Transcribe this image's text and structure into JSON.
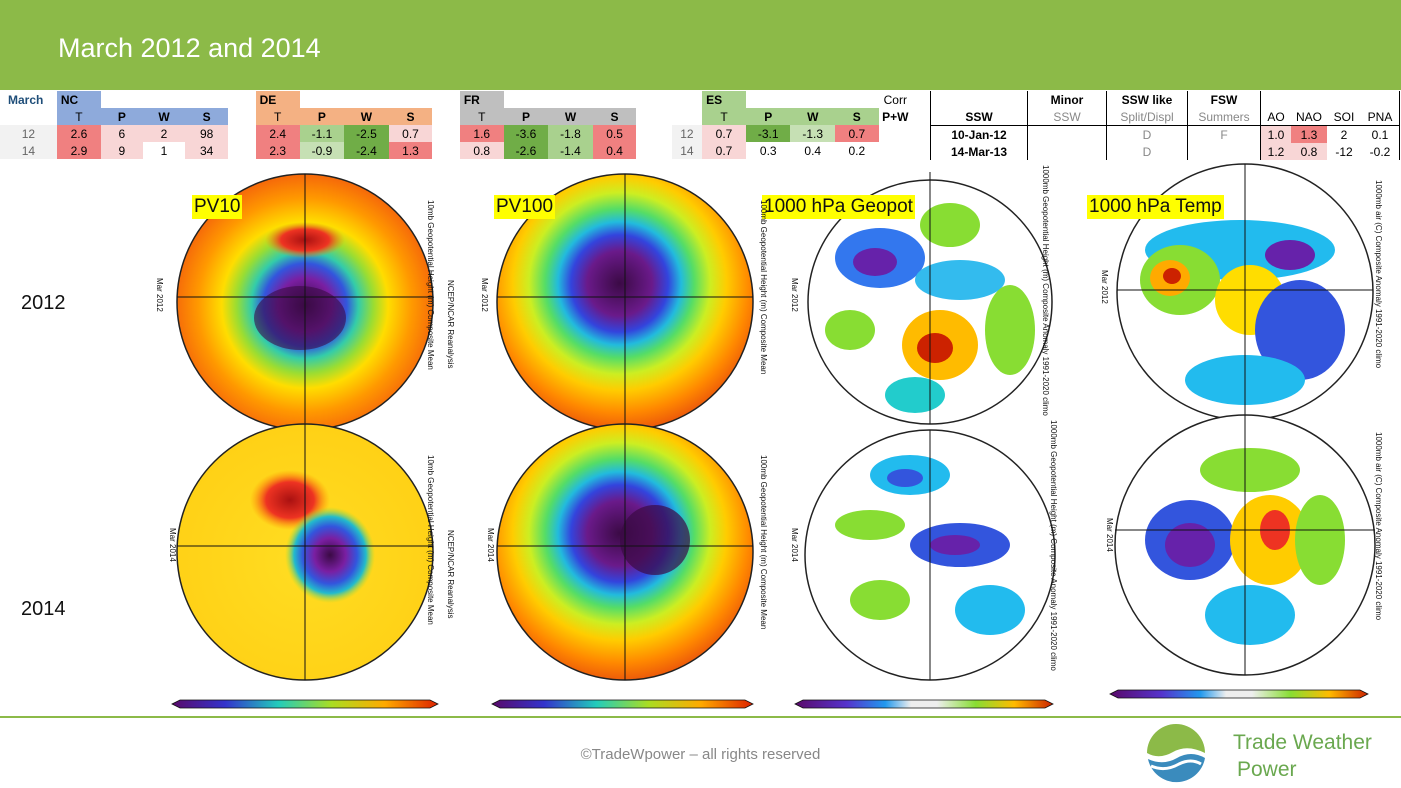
{
  "header": {
    "title": "March 2012 and 2014"
  },
  "table_left": {
    "corner": "March",
    "groups": [
      {
        "name": "NC",
        "color": "#8eaadb",
        "cols": [
          "T",
          "P",
          "W",
          "S"
        ],
        "rows": [
          [
            "2.6",
            "6",
            "2",
            "98"
          ],
          [
            "2.9",
            "9",
            "1",
            "34"
          ]
        ]
      },
      {
        "name": "DE",
        "color": "#f4b183",
        "cols": [
          "T",
          "P",
          "W",
          "S"
        ],
        "rows": [
          [
            "2.4",
            "-1.1",
            "-2.5",
            "0.7"
          ],
          [
            "2.3",
            "-0.9",
            "-2.4",
            "1.3"
          ]
        ]
      },
      {
        "name": "FR",
        "color": "#bfbfbf",
        "cols": [
          "T",
          "P",
          "W",
          "S"
        ],
        "rows": [
          [
            "1.6",
            "-3.6",
            "-1.8",
            "0.5"
          ],
          [
            "0.8",
            "-2.6",
            "-1.4",
            "0.4"
          ]
        ]
      },
      {
        "name": "ES",
        "color": "#a9d18e",
        "cols": [
          "T",
          "P",
          "W",
          "S"
        ],
        "rows": [
          [
            "0.7",
            "-3.1",
            "-1.3",
            "0.7"
          ],
          [
            "0.7",
            "0.3",
            "0.4",
            "0.2"
          ]
        ]
      }
    ],
    "row_labels": [
      "12",
      "14"
    ],
    "corr_label": "Corr",
    "pw_label": "P+W"
  },
  "table_right": {
    "headers": [
      "SSW",
      "Minor",
      "SSW like",
      "FSW"
    ],
    "subheaders": [
      "",
      "SSW",
      "Split/Displ",
      "Summers"
    ],
    "rows": [
      [
        "10-Jan-12",
        "",
        "D",
        "F"
      ],
      [
        "14-Mar-13",
        "",
        "D",
        ""
      ]
    ],
    "index_headers": [
      "AO",
      "NAO",
      "SOI",
      "PNA"
    ],
    "index_rows": [
      [
        "1.0",
        "1.3",
        "2",
        "0.1"
      ],
      [
        "1.2",
        "0.8",
        "-12",
        "-0.2"
      ]
    ]
  },
  "maps": {
    "titles": [
      "PV10",
      "PV100",
      "1000 hPa Geopot",
      "1000 hPa Temp"
    ],
    "years": [
      "2012",
      "2014"
    ],
    "mar_labels": [
      "Mar 2012",
      "Mar 2014"
    ],
    "side_labels": [
      [
        "10mb Geopotential Height (m) Composite Mean",
        "NCEP/NCAR Reanalysis",
        "NOAA Physical Sciences Laboratory"
      ],
      [
        "100mb Geopotential Height (m) Composite Mean",
        "NCEP/NCAR Reanalysis",
        "NOAA Physical Sciences Laboratory"
      ],
      [
        "1000mb Geopotential Height (m) Composite Anomaly 1991-2020 climo",
        "NCEP/NCAR Reanalysis",
        "NOAA Physical Sciences Laboratory"
      ],
      [
        "1000mb air (C) Composite Anomaly 1991-2020 climo",
        "NCEP/NCAR Reanalysis",
        "NOAA Physical Sciences Laboratory"
      ]
    ]
  },
  "footer": {
    "copyright": "©TradeWpower – all rights reserved",
    "brand_line1": "Trade Weather",
    "brand_line2": "Power"
  },
  "colors": {
    "header_green": "#8cba48",
    "brand_green": "#6aa84f",
    "logo_blue": "#3a8bbd"
  }
}
